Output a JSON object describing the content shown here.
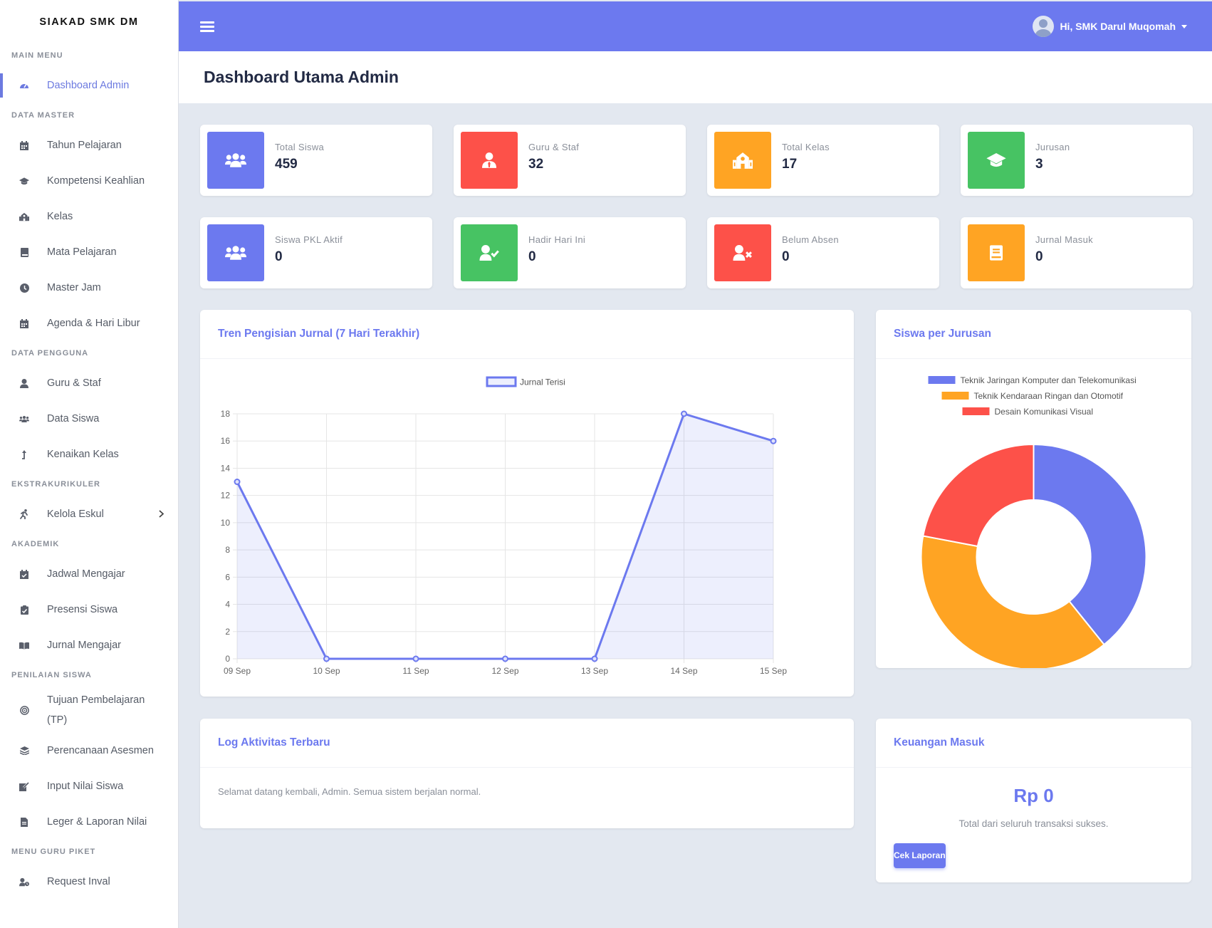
{
  "sidebar": {
    "brand": "SIAKAD SMK DM",
    "sections": [
      {
        "title": "MAIN MENU",
        "items": [
          {
            "label": "Dashboard Admin",
            "icon": "tachometer-icon"
          }
        ]
      },
      {
        "title": "DATA MASTER",
        "items": [
          {
            "label": "Tahun Pelajaran",
            "icon": "calendar-icon"
          },
          {
            "label": "Kompetensi Keahlian",
            "icon": "graduation-cap-icon"
          },
          {
            "label": "Kelas",
            "icon": "school-icon"
          },
          {
            "label": "Mata Pelajaran",
            "icon": "book-icon"
          },
          {
            "label": "Master Jam",
            "icon": "clock-icon"
          },
          {
            "label": "Agenda & Hari Libur",
            "icon": "calendar-icon"
          }
        ]
      },
      {
        "title": "DATA PENGGUNA",
        "items": [
          {
            "label": "Guru & Staf",
            "icon": "user-icon"
          },
          {
            "label": "Data Siswa",
            "icon": "users-icon"
          },
          {
            "label": "Kenaikan Kelas",
            "icon": "level-up-icon"
          }
        ]
      },
      {
        "title": "EKSTRAKURIKULER",
        "items": [
          {
            "label": "Kelola Eskul",
            "icon": "running-icon"
          }
        ]
      },
      {
        "title": "AKADEMIK",
        "items": [
          {
            "label": "Jadwal Mengajar",
            "icon": "calendar-check-icon"
          },
          {
            "label": "Presensi Siswa",
            "icon": "clipboard-check-icon"
          },
          {
            "label": "Jurnal Mengajar",
            "icon": "open-book-icon"
          }
        ]
      },
      {
        "title": "PENILAIAN SISWA",
        "items": [
          {
            "label": "Tujuan Pembelajaran (TP)",
            "icon": "target-icon"
          },
          {
            "label": "Perencanaan Asesmen",
            "icon": "layers-icon"
          },
          {
            "label": "Input Nilai Siswa",
            "icon": "edit-icon"
          },
          {
            "label": "Leger & Laporan Nilai",
            "icon": "file-icon"
          }
        ]
      },
      {
        "title": "MENU GURU PIKET",
        "items": [
          {
            "label": "Request Inval",
            "icon": "user-clock-icon"
          }
        ]
      }
    ]
  },
  "topbar": {
    "user_label": "Hi, SMK Darul Muqomah"
  },
  "page": {
    "title": "Dashboard Utama Admin"
  },
  "stats": [
    {
      "label": "Total Siswa",
      "value": "459",
      "color": "#6c79ef",
      "icon": "users-icon"
    },
    {
      "label": "Guru & Staf",
      "value": "32",
      "color": "#fd5149",
      "icon": "user-tie-icon"
    },
    {
      "label": "Total Kelas",
      "value": "17",
      "color": "#ffa423",
      "icon": "school-icon"
    },
    {
      "label": "Jurusan",
      "value": "3",
      "color": "#47c363",
      "icon": "graduation-cap-icon"
    },
    {
      "label": "Siswa PKL Aktif",
      "value": "0",
      "color": "#6c79ef",
      "icon": "users-icon"
    },
    {
      "label": "Hadir Hari Ini",
      "value": "0",
      "color": "#47c363",
      "icon": "user-check-icon"
    },
    {
      "label": "Belum Absen",
      "value": "0",
      "color": "#fd5149",
      "icon": "user-times-icon"
    },
    {
      "label": "Jurnal Masuk",
      "value": "0",
      "color": "#ffa423",
      "icon": "book-icon"
    }
  ],
  "trend_panel": {
    "title": "Tren Pengisian Jurnal (7 Hari Terakhir)"
  },
  "donut_panel": {
    "title": "Siswa per Jurusan"
  },
  "log_panel": {
    "title": "Log Aktivitas Terbaru",
    "text": "Selamat datang kembali, Admin. Semua sistem berjalan normal."
  },
  "finance_panel": {
    "title": "Keuangan Masuk",
    "amount": "Rp 0",
    "subtitle": "Total dari seluruh transaksi sukses.",
    "button_label": "Cek Laporan"
  },
  "chart_data": [
    {
      "type": "line",
      "title": "",
      "x": [
        "09 Sep",
        "10 Sep",
        "11 Sep",
        "12 Sep",
        "13 Sep",
        "14 Sep",
        "15 Sep"
      ],
      "series": [
        {
          "name": "Jurnal Terisi",
          "values": [
            13,
            0,
            0,
            0,
            0,
            18,
            16
          ],
          "color": "#6c79ef"
        }
      ],
      "ylim": [
        0,
        18
      ],
      "yticks": [
        0,
        2,
        4,
        6,
        8,
        10,
        12,
        14,
        16,
        18
      ],
      "grid": true,
      "legend": "top-center",
      "fill": "area"
    },
    {
      "type": "pie",
      "variant": "doughnut",
      "categories": [
        "Teknik Jaringan Komputer dan Telekomunikasi",
        "Teknik Kendaraan Ringan dan Otomotif",
        "Desain Komunikasi Visual"
      ],
      "values": [
        180,
        178,
        101
      ],
      "colors": [
        "#6c79ef",
        "#ffa423",
        "#fd5149"
      ],
      "legend": "top-center"
    }
  ]
}
